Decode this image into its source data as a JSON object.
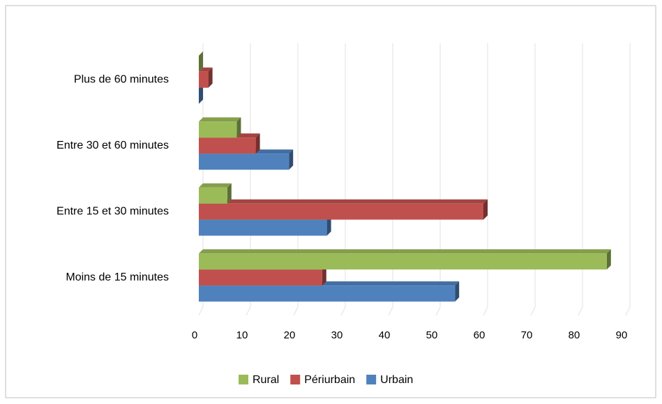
{
  "chart_data": {
    "type": "bar3d_horizontal",
    "categories": [
      "Moins de 15 minutes",
      "Entre 15 et 30 minutes",
      "Entre 30 et 60 minutes",
      "Plus de 60 minutes"
    ],
    "series": [
      {
        "name": "Urbain",
        "color": "#4f81bd",
        "values": [
          54,
          27,
          19,
          0
        ]
      },
      {
        "name": "Périurbain",
        "color": "#c0504d",
        "values": [
          26,
          60,
          12,
          2
        ]
      },
      {
        "name": "Rural",
        "color": "#9bbb59",
        "values": [
          86,
          6,
          8,
          0
        ]
      }
    ],
    "xlim": [
      0,
      90
    ],
    "xticks": [
      0,
      10,
      20,
      30,
      40,
      50,
      60,
      70,
      80,
      90
    ],
    "grid": true,
    "legend": "bottom"
  }
}
